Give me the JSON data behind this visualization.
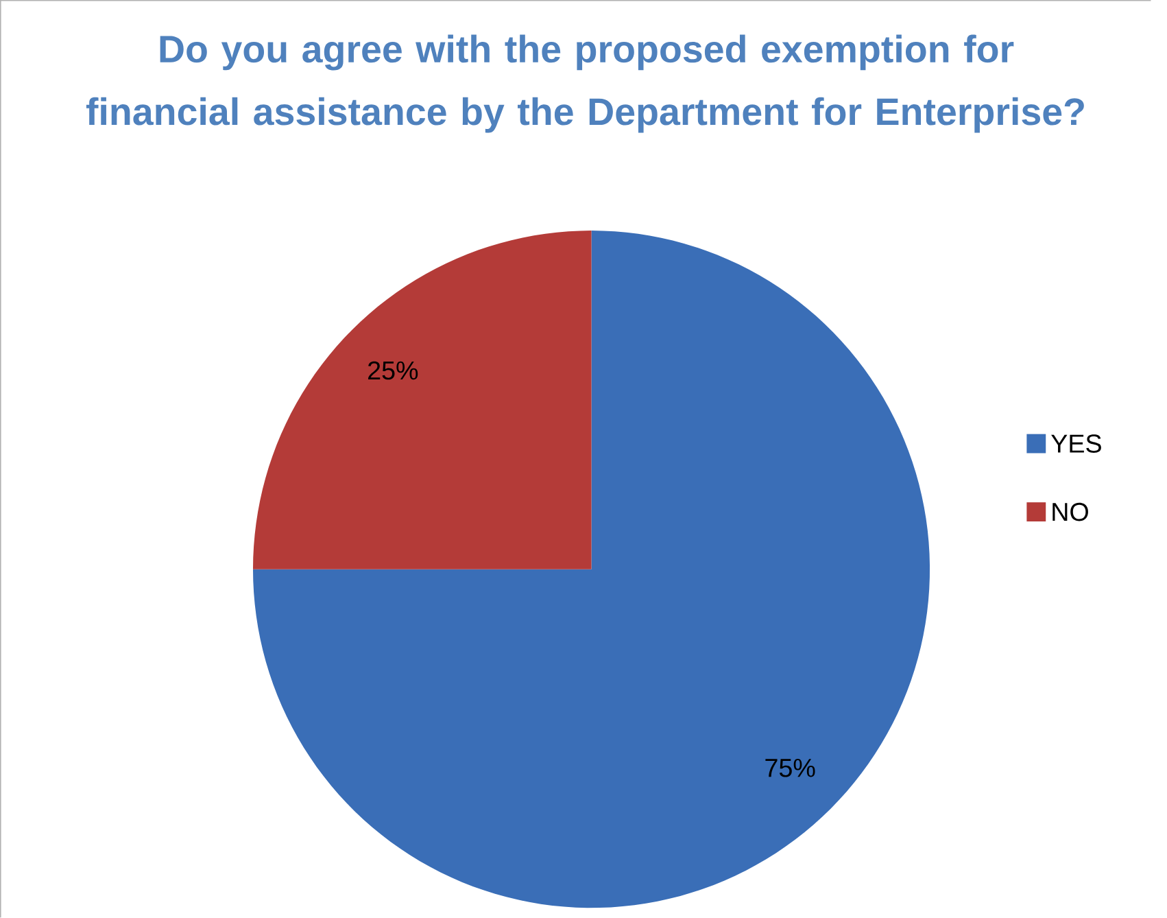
{
  "chart_data": {
    "type": "pie",
    "title": "Do you agree with the proposed exemption for financial assistance by the Department for Enterprise?",
    "categories": [
      "YES",
      "NO"
    ],
    "values": [
      75,
      25
    ],
    "colors": [
      "#3a6eb7",
      "#b43b38"
    ],
    "value_labels": [
      "75%",
      "25%"
    ],
    "legend": "right"
  }
}
